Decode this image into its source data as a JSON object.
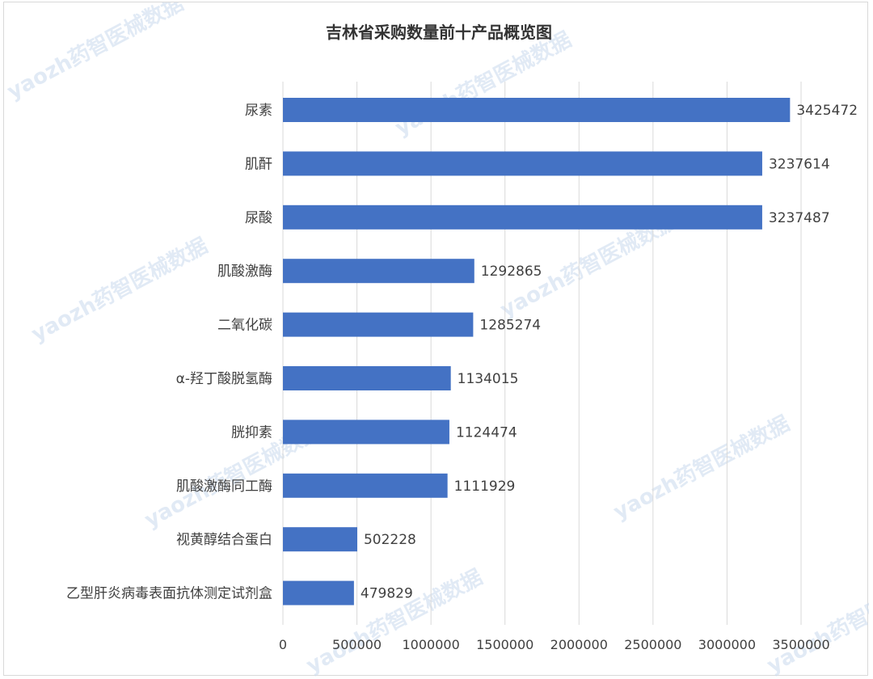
{
  "chart_data": {
    "type": "bar",
    "orientation": "horizontal",
    "title": "吉林省采购数量前十产品概览图",
    "categories": [
      "尿素",
      "肌酐",
      "尿酸",
      "肌酸激酶",
      "二氧化碳",
      "α-羟丁酸脱氢酶",
      "胱抑素",
      "肌酸激酶同工酶",
      "视黄醇结合蛋白",
      "乙型肝炎病毒表面抗体测定试剂盒"
    ],
    "values": [
      3425472,
      3237614,
      3237487,
      1292865,
      1285274,
      1134015,
      1124474,
      1111929,
      502228,
      479829
    ],
    "value_labels": [
      "3425472",
      "3237614",
      "3237487",
      "1292865",
      "1285274",
      "1134015",
      "1124474",
      "1111929",
      "502228",
      "479829"
    ],
    "xlim": [
      0,
      3500000
    ],
    "xticks": [
      "0",
      "500000",
      "1000000",
      "1500000",
      "2000000",
      "2500000",
      "3000000",
      "3500000"
    ],
    "xlabel": "",
    "ylabel": "",
    "grid": true,
    "legend": "none",
    "bar_color": "#4472c4"
  },
  "watermark": "yaozh药智医械数据"
}
